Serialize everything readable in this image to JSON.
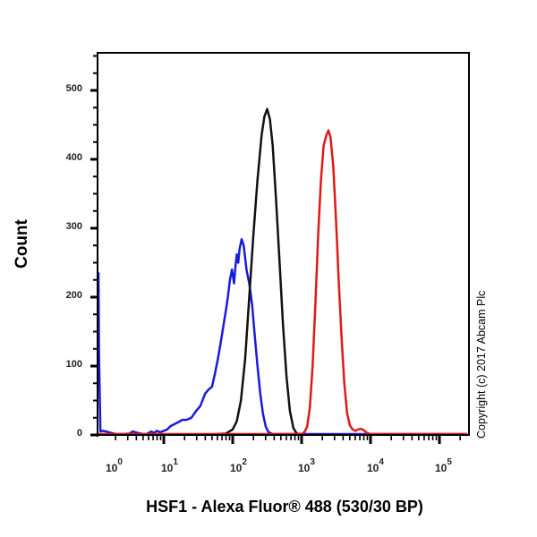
{
  "chart_data": {
    "type": "line",
    "title": "",
    "xlabel": "HSF1 - Alexa Fluor® 488 (530/30 BP)",
    "ylabel": "Count",
    "xscale": "log",
    "xlim_log10": [
      0.04,
      5.4
    ],
    "ylim": [
      0,
      555
    ],
    "y_ticks": [
      0,
      100,
      200,
      300,
      400,
      500
    ],
    "y_tick_labels": [
      "0",
      "100",
      "200",
      "300",
      "400",
      "500"
    ],
    "x_ticks_log10": [
      0,
      1,
      2,
      3,
      4,
      5
    ],
    "x_tick_labels": [
      "10^0",
      "10^1",
      "10^2",
      "10^3",
      "10^4",
      "10^5"
    ],
    "grid": false,
    "legend": null,
    "annotation": "Copyright (c) 2017 Abcam Plc",
    "series": [
      {
        "name": "blue",
        "color": "#1a1adc",
        "points_log10x_count": [
          [
            0.04,
            236
          ],
          [
            0.06,
            120
          ],
          [
            0.08,
            5
          ],
          [
            0.12,
            6
          ],
          [
            0.2,
            4
          ],
          [
            0.3,
            0
          ],
          [
            0.4,
            0
          ],
          [
            0.5,
            2
          ],
          [
            0.55,
            5
          ],
          [
            0.62,
            3
          ],
          [
            0.7,
            0
          ],
          [
            0.75,
            1
          ],
          [
            0.82,
            5
          ],
          [
            0.86,
            3
          ],
          [
            0.9,
            6
          ],
          [
            0.95,
            4
          ],
          [
            1.0,
            6
          ],
          [
            1.05,
            8
          ],
          [
            1.1,
            13
          ],
          [
            1.2,
            18
          ],
          [
            1.27,
            22
          ],
          [
            1.33,
            22
          ],
          [
            1.4,
            25
          ],
          [
            1.47,
            35
          ],
          [
            1.53,
            42
          ],
          [
            1.6,
            60
          ],
          [
            1.65,
            66
          ],
          [
            1.7,
            70
          ],
          [
            1.74,
            88
          ],
          [
            1.78,
            108
          ],
          [
            1.82,
            130
          ],
          [
            1.86,
            155
          ],
          [
            1.9,
            180
          ],
          [
            1.93,
            200
          ],
          [
            1.96,
            225
          ],
          [
            1.99,
            240
          ],
          [
            2.02,
            220
          ],
          [
            2.04,
            245
          ],
          [
            2.06,
            262
          ],
          [
            2.08,
            250
          ],
          [
            2.1,
            270
          ],
          [
            2.13,
            284
          ],
          [
            2.16,
            275
          ],
          [
            2.2,
            240
          ],
          [
            2.24,
            220
          ],
          [
            2.28,
            190
          ],
          [
            2.32,
            145
          ],
          [
            2.36,
            100
          ],
          [
            2.4,
            60
          ],
          [
            2.44,
            30
          ],
          [
            2.48,
            12
          ],
          [
            2.52,
            4
          ],
          [
            2.58,
            0
          ],
          [
            5.4,
            0
          ]
        ]
      },
      {
        "name": "black",
        "color": "#111111",
        "points_log10x_count": [
          [
            1.75,
            0
          ],
          [
            1.9,
            2
          ],
          [
            2.0,
            8
          ],
          [
            2.06,
            20
          ],
          [
            2.12,
            50
          ],
          [
            2.18,
            110
          ],
          [
            2.24,
            200
          ],
          [
            2.3,
            290
          ],
          [
            2.36,
            370
          ],
          [
            2.42,
            435
          ],
          [
            2.46,
            462
          ],
          [
            2.5,
            473
          ],
          [
            2.54,
            458
          ],
          [
            2.58,
            420
          ],
          [
            2.63,
            340
          ],
          [
            2.68,
            250
          ],
          [
            2.73,
            160
          ],
          [
            2.78,
            85
          ],
          [
            2.83,
            35
          ],
          [
            2.88,
            10
          ],
          [
            2.93,
            2
          ],
          [
            3.0,
            0
          ]
        ]
      },
      {
        "name": "red",
        "color": "#e01818",
        "points_log10x_count": [
          [
            0.04,
            0
          ],
          [
            2.9,
            0
          ],
          [
            3.0,
            1
          ],
          [
            3.04,
            4
          ],
          [
            3.08,
            12
          ],
          [
            3.12,
            40
          ],
          [
            3.16,
            100
          ],
          [
            3.2,
            190
          ],
          [
            3.24,
            290
          ],
          [
            3.28,
            370
          ],
          [
            3.32,
            420
          ],
          [
            3.36,
            435
          ],
          [
            3.39,
            442
          ],
          [
            3.42,
            432
          ],
          [
            3.46,
            390
          ],
          [
            3.5,
            310
          ],
          [
            3.54,
            220
          ],
          [
            3.58,
            140
          ],
          [
            3.62,
            75
          ],
          [
            3.66,
            32
          ],
          [
            3.7,
            14
          ],
          [
            3.74,
            8
          ],
          [
            3.78,
            6
          ],
          [
            3.82,
            8
          ],
          [
            3.86,
            9
          ],
          [
            3.9,
            7
          ],
          [
            3.95,
            3
          ],
          [
            4.0,
            0
          ],
          [
            5.4,
            0
          ]
        ]
      }
    ]
  },
  "axes": {
    "ylabel": "Count",
    "xlabel": "HSF1 - Alexa Fluor® 488 (530/30 BP)"
  },
  "annotation": {
    "copyright": "Copyright (c) 2017 Abcam Plc"
  }
}
